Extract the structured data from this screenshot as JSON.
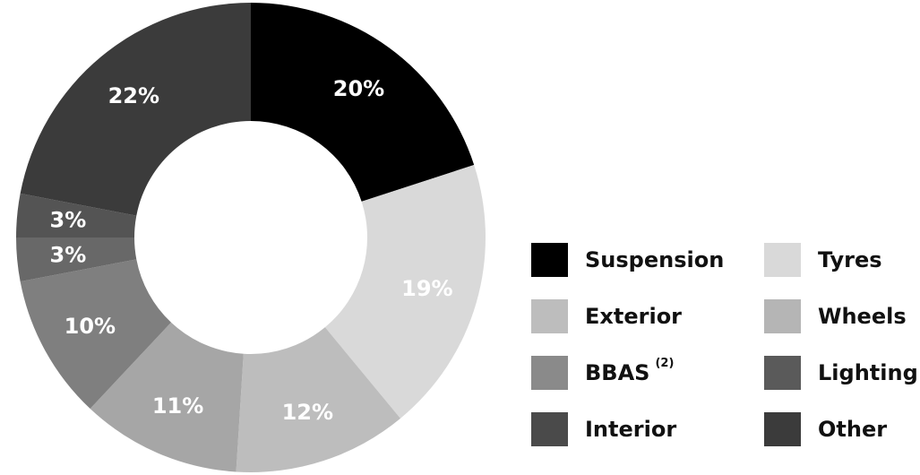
{
  "chart_data": {
    "type": "pie",
    "variant": "donut",
    "title": "",
    "start_angle_deg": 0,
    "direction": "clockwise",
    "slices": [
      {
        "label": "Suspension",
        "value": 20,
        "value_label": "20%",
        "color": "#000000",
        "text_color": "#ffffff"
      },
      {
        "label": "Tyres",
        "value": 19,
        "value_label": "19%",
        "color": "#d9d9d9",
        "text_color": "#ffffff"
      },
      {
        "label": "Wheels",
        "value": 12,
        "value_label": "12%",
        "color": "#bdbdbd",
        "text_color": "#ffffff"
      },
      {
        "label": "Exterior",
        "value": 11,
        "value_label": "11%",
        "color": "#a6a6a6",
        "text_color": "#ffffff"
      },
      {
        "label": "BBAS",
        "value": 10,
        "value_label": "10%",
        "color": "#7f7f7f",
        "text_color": "#ffffff"
      },
      {
        "label": "Lighting",
        "value": 3,
        "value_label": "3%",
        "color": "#686868",
        "text_color": "#ffffff"
      },
      {
        "label": "Interior",
        "value": 3,
        "value_label": "3%",
        "color": "#545454",
        "text_color": "#ffffff"
      },
      {
        "label": "Other",
        "value": 22,
        "value_label": "22%",
        "color": "#3b3b3b",
        "text_color": "#ffffff"
      }
    ],
    "legend": {
      "placement": "right",
      "rows": [
        [
          {
            "label": "Suspension",
            "color": "#000000"
          },
          {
            "label": "Tyres",
            "color": "#d9d9d9"
          }
        ],
        [
          {
            "label": "Exterior",
            "color": "#bdbdbd"
          },
          {
            "label": "Wheels",
            "color": "#b5b5b5"
          }
        ],
        [
          {
            "label": "BBAS",
            "sup": "(2)",
            "color": "#8a8a8a"
          },
          {
            "label": "Lighting",
            "color": "#5a5a5a"
          }
        ],
        [
          {
            "label": "Interior",
            "color": "#4a4a4a"
          },
          {
            "label": "Other",
            "color": "#3b3b3b"
          }
        ]
      ]
    }
  }
}
